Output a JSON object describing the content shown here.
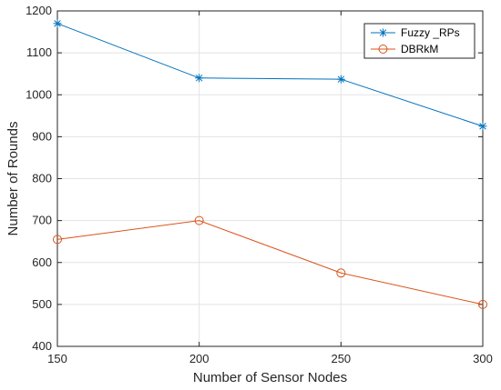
{
  "chart_data": {
    "type": "line",
    "title": "",
    "xlabel": "Number of Sensor Nodes",
    "ylabel": "Number of Rounds",
    "x": [
      150,
      200,
      250,
      300
    ],
    "xlim": [
      150,
      300
    ],
    "ylim": [
      400,
      1200
    ],
    "xticks": [
      "150",
      "200",
      "250",
      "300"
    ],
    "yticks": [
      "400",
      "500",
      "600",
      "700",
      "800",
      "900",
      "1000",
      "1100",
      "1200"
    ],
    "grid": true,
    "legend_position": "top-right",
    "series": [
      {
        "name": "Fuzzy _RPs",
        "values": [
          1170,
          1040,
          1037,
          925
        ],
        "color": "#0072BD",
        "marker": "asterisk"
      },
      {
        "name": "DBRkM",
        "values": [
          655,
          700,
          575,
          500
        ],
        "color": "#D95319",
        "marker": "circle"
      }
    ]
  }
}
